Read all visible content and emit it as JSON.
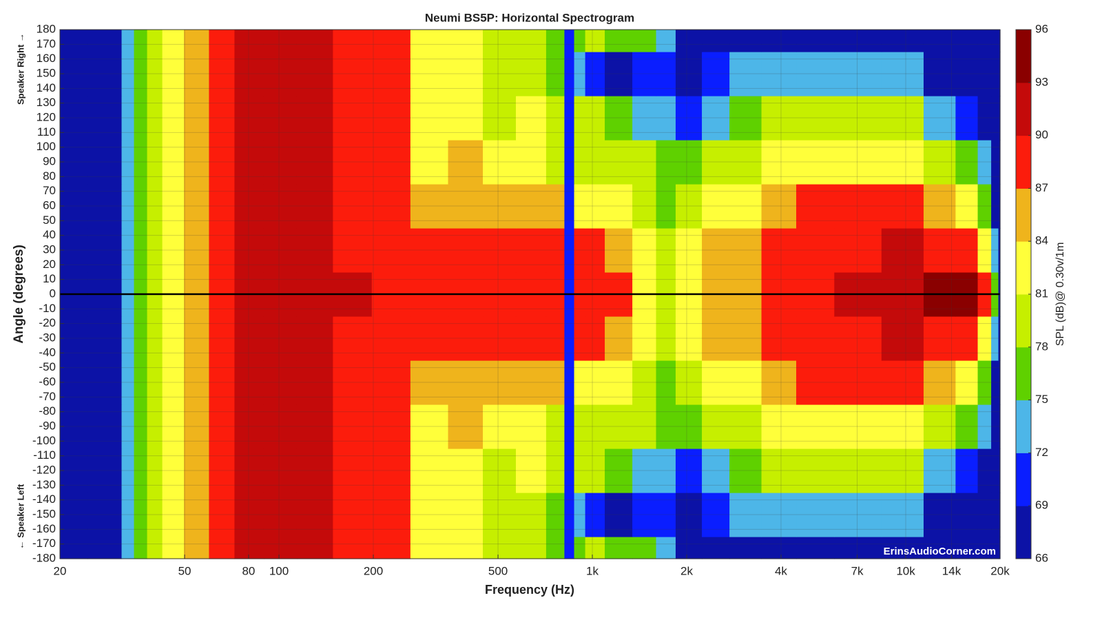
{
  "chart_data": {
    "type": "heatmap",
    "title": "Neumi BS5P: Horizontal Spectrogram",
    "x_label": "Frequency (Hz)",
    "y_label": "Angle (degrees)",
    "colorbar_label": "SPL (dB)@ 0.30v/1m",
    "annotations": [
      "Speaker Right →",
      "← Speaker Left",
      "ErinsAudioCorner.com"
    ],
    "x_scale": "log",
    "grid": true,
    "hline": 0,
    "xlim": [
      20,
      20000
    ],
    "ylim": [
      -180,
      180
    ],
    "xticks": [
      20,
      50,
      80,
      100,
      200,
      500,
      {
        "value": 1000,
        "label": "1k"
      },
      {
        "value": 2000,
        "label": "2k"
      },
      {
        "value": 4000,
        "label": "4k"
      },
      {
        "value": 7000,
        "label": "7k"
      },
      {
        "value": 10000,
        "label": "10k"
      },
      {
        "value": 14000,
        "label": "14k"
      },
      {
        "value": 20000,
        "label": "20k"
      }
    ],
    "yticks": [
      -180,
      -170,
      -160,
      -150,
      -140,
      -130,
      -120,
      -110,
      -100,
      -90,
      -80,
      -70,
      -60,
      -50,
      -40,
      -30,
      -20,
      -10,
      0,
      10,
      20,
      30,
      40,
      50,
      60,
      70,
      80,
      90,
      100,
      110,
      120,
      130,
      140,
      150,
      160,
      170,
      180
    ],
    "clim": [
      66,
      96
    ],
    "cticks": [
      66,
      69,
      72,
      75,
      78,
      81,
      84,
      87,
      90,
      93,
      96
    ],
    "colors": [
      "#0c12a6",
      "#0a1eff",
      "#4db6e8",
      "#5fd100",
      "#c6ef00",
      "#ffff3a",
      "#efb41c",
      "#fc1c0c",
      "#c40a0a",
      "#8a0000"
    ],
    "x": [
      20,
      30,
      33,
      36,
      40,
      45,
      55,
      65,
      80,
      100,
      130,
      170,
      230,
      300,
      400,
      500,
      650,
      780,
      850,
      900,
      1000,
      1200,
      1500,
      1700,
      2000,
      2500,
      3000,
      4000,
      5000,
      7000,
      10000,
      13000,
      16000,
      18000,
      19500,
      20000
    ],
    "y": [
      -180,
      -150,
      -120,
      -90,
      -60,
      -30,
      0,
      30,
      60,
      90,
      120,
      150,
      180
    ],
    "z": [
      [
        67,
        67,
        73,
        77,
        80,
        82.5,
        85.5,
        88.5,
        91,
        91.5,
        90.5,
        88.5,
        88,
        83,
        82.5,
        80,
        79,
        76,
        70,
        75,
        78,
        77,
        77,
        73,
        68,
        68,
        68,
        68,
        68,
        68,
        67,
        67,
        67,
        67,
        67,
        67
      ],
      [
        67,
        67,
        73,
        77,
        80,
        82.5,
        85.5,
        88.5,
        91,
        91.5,
        90.5,
        88.5,
        88,
        82.5,
        82,
        80,
        79,
        76,
        70,
        72,
        69,
        68,
        70,
        71,
        68,
        69,
        72,
        74,
        74,
        74,
        73,
        68,
        67,
        67,
        67,
        67
      ],
      [
        67,
        67,
        73,
        77,
        80,
        82.5,
        85.5,
        88.5,
        91,
        91.5,
        90.5,
        88.5,
        88,
        82,
        83,
        80,
        81,
        78,
        70,
        78,
        78,
        75,
        73,
        72,
        70,
        73,
        76,
        78,
        79,
        79,
        78,
        74,
        70,
        67,
        67,
        67
      ],
      [
        67,
        67,
        73,
        77,
        80,
        82.5,
        85.5,
        88.5,
        91,
        91.5,
        90.5,
        88.5,
        88,
        83,
        84,
        82,
        83,
        80,
        70,
        80,
        80,
        79,
        78,
        76,
        77,
        78,
        79,
        82,
        83,
        83,
        82,
        79,
        76,
        72,
        67,
        67
      ],
      [
        67,
        67,
        73,
        77,
        80,
        82.5,
        85.5,
        88.5,
        91,
        91.5,
        90.5,
        88.5,
        88,
        86,
        86,
        85.5,
        85,
        85,
        70,
        82,
        83,
        82,
        80,
        77,
        80,
        81,
        82,
        86,
        87,
        88,
        87,
        84,
        81,
        76,
        68,
        67
      ],
      [
        67,
        67,
        73,
        77,
        80,
        82.5,
        85.5,
        88.5,
        91,
        91.5,
        91,
        89,
        88,
        88.5,
        88,
        88,
        88,
        87,
        70,
        87.5,
        88,
        86,
        82,
        79,
        82,
        84,
        85.5,
        88.5,
        89,
        89,
        90,
        89,
        88,
        83,
        72,
        67
      ],
      [
        67,
        67,
        73,
        77,
        80,
        82.5,
        85.5,
        88.5,
        91,
        91.5,
        91,
        90.5,
        89,
        89,
        88.5,
        88,
        88,
        88,
        70,
        88,
        88,
        88,
        83,
        79,
        82,
        84,
        86,
        89,
        89,
        91,
        91.5,
        93.5,
        93,
        88,
        75,
        67
      ],
      [
        67,
        67,
        73,
        77,
        80,
        82.5,
        85.5,
        88.5,
        91,
        91.5,
        91,
        89,
        88,
        88.5,
        88,
        88,
        88,
        87,
        70,
        87.5,
        88,
        86,
        82,
        79,
        82,
        84,
        85.5,
        88.5,
        89,
        89,
        90,
        89,
        88,
        83,
        72,
        67
      ],
      [
        67,
        67,
        73,
        77,
        80,
        82.5,
        85.5,
        88.5,
        91,
        91.5,
        90.5,
        88.5,
        88,
        86,
        86,
        85.5,
        85,
        85,
        70,
        82,
        83,
        82,
        80,
        77,
        80,
        81,
        82,
        86,
        87,
        88,
        87,
        84,
        81,
        76,
        68,
        67
      ],
      [
        67,
        67,
        73,
        77,
        80,
        82.5,
        85.5,
        88.5,
        91,
        91.5,
        90.5,
        88.5,
        88,
        83,
        84,
        82,
        83,
        80,
        70,
        80,
        80,
        79,
        78,
        76,
        77,
        78,
        79,
        82,
        83,
        83,
        82,
        79,
        76,
        72,
        67,
        67
      ],
      [
        67,
        67,
        73,
        77,
        80,
        82.5,
        85.5,
        88.5,
        91,
        91.5,
        90.5,
        88.5,
        88,
        82,
        83,
        80,
        81,
        78,
        70,
        78,
        78,
        75,
        73,
        72,
        70,
        73,
        76,
        78,
        79,
        79,
        78,
        74,
        70,
        67,
        67,
        67
      ],
      [
        67,
        67,
        73,
        77,
        80,
        82.5,
        85.5,
        88.5,
        91,
        91.5,
        90.5,
        88.5,
        88,
        82.5,
        82,
        80,
        79,
        76,
        70,
        72,
        69,
        68,
        70,
        71,
        68,
        69,
        72,
        74,
        74,
        74,
        73,
        68,
        67,
        67,
        67,
        67
      ],
      [
        67,
        67,
        73,
        77,
        80,
        82.5,
        85.5,
        88.5,
        91,
        91.5,
        90.5,
        88.5,
        88,
        83,
        82.5,
        80,
        79,
        76,
        70,
        75,
        78,
        77,
        77,
        73,
        68,
        68,
        68,
        68,
        68,
        68,
        67,
        67,
        67,
        67,
        67,
        67
      ]
    ]
  }
}
